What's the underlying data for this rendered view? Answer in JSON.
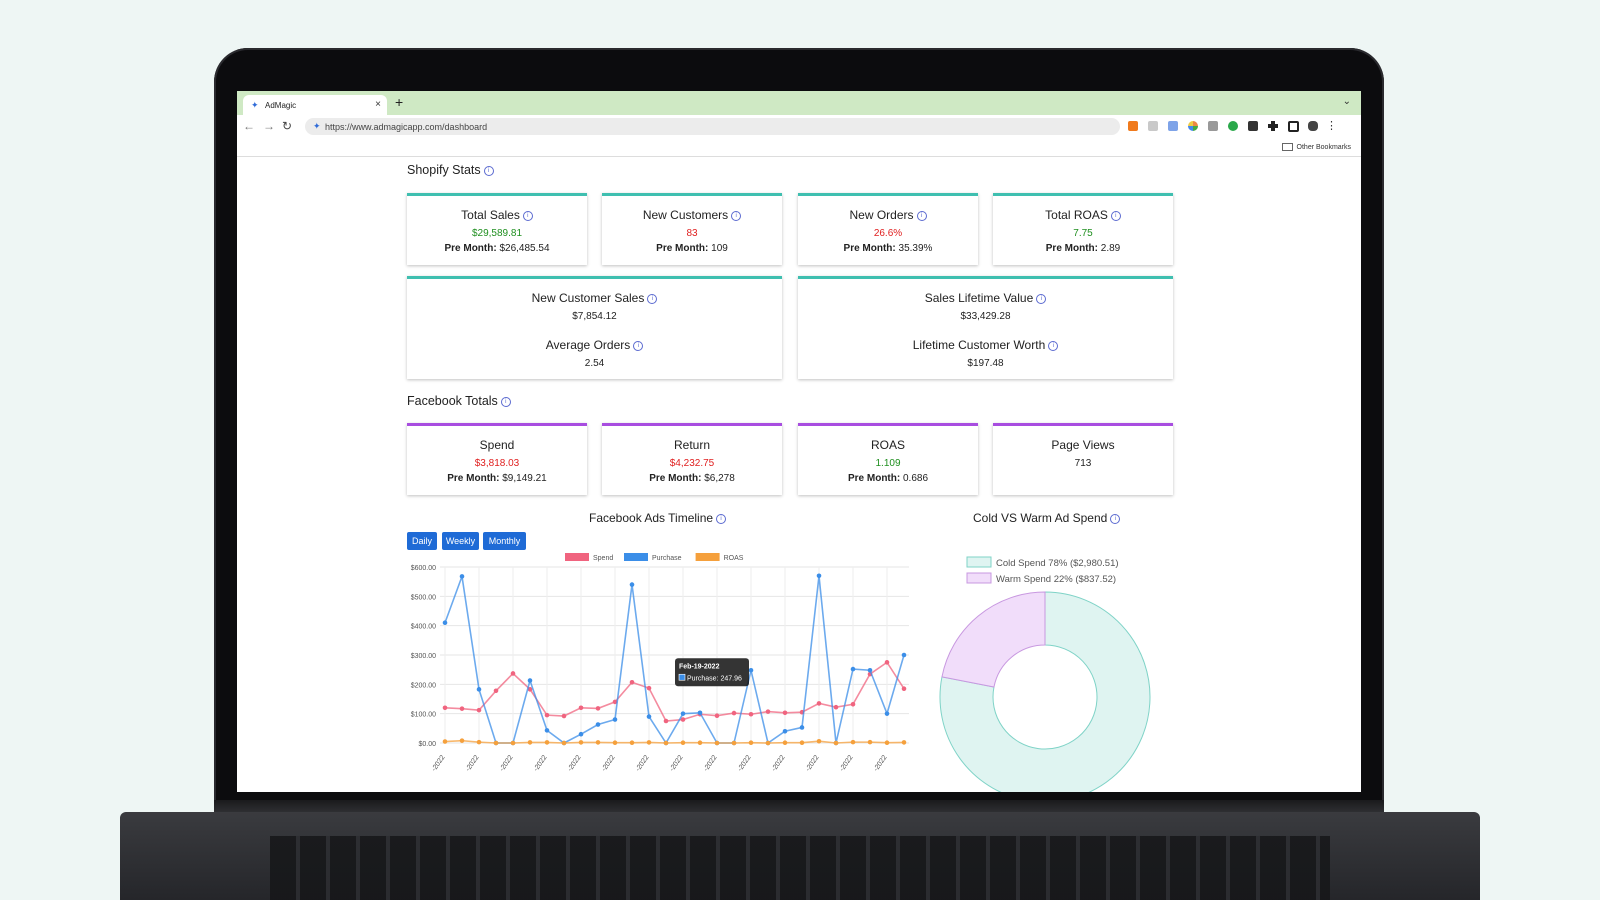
{
  "browser": {
    "tab_title": "AdMagic",
    "tab_close": "×",
    "new_tab": "+",
    "url": "https://www.admagicapp.com/dashboard",
    "bookmarks_label": "Other Bookmarks"
  },
  "shopify": {
    "title": "Shopify Stats",
    "cards": [
      {
        "title": "Total Sales",
        "value": "$29,589.81",
        "color": "green",
        "pre_label": "Pre Month:",
        "pre_value": " $26,485.54"
      },
      {
        "title": "New Customers",
        "value": "83",
        "color": "red",
        "pre_label": "Pre Month:",
        "pre_value": " 109"
      },
      {
        "title": "New Orders",
        "value": "26.6%",
        "color": "red",
        "pre_label": "Pre Month:",
        "pre_value": " 35.39%"
      },
      {
        "title": "Total ROAS",
        "value": "7.75",
        "color": "green",
        "pre_label": "Pre Month:",
        "pre_value": " 2.89"
      }
    ],
    "wide_cards": [
      {
        "title1": "New Customer Sales",
        "value1": "$7,854.12",
        "title2": "Average Orders",
        "value2": "2.54"
      },
      {
        "title1": "Sales Lifetime Value",
        "value1": "$33,429.28",
        "title2": "Lifetime Customer Worth",
        "value2": "$197.48"
      }
    ]
  },
  "facebook": {
    "title": "Facebook Totals",
    "cards": [
      {
        "title": "Spend",
        "value": "$3,818.03",
        "color": "red",
        "pre_label": "Pre Month:",
        "pre_value": " $9,149.21"
      },
      {
        "title": "Return",
        "value": "$4,232.75",
        "color": "red",
        "pre_label": "Pre Month:",
        "pre_value": " $6,278"
      },
      {
        "title": "ROAS",
        "value": "1.109",
        "color": "green",
        "pre_label": "Pre Month:",
        "pre_value": " 0.686"
      },
      {
        "title": "Page Views",
        "value": "713",
        "color": "dark",
        "pre_label": "",
        "pre_value": ""
      }
    ]
  },
  "timeline": {
    "title": "Facebook Ads Timeline",
    "buttons": [
      "Daily",
      "Weekly",
      "Monthly"
    ],
    "tooltip_title": "Feb-19-2022",
    "tooltip_body": "Purchase: 247.96"
  },
  "donut": {
    "title": "Cold VS Warm Ad Spend",
    "legend": [
      "Cold Spend 78% ($2,980.51)",
      "Warm Spend 22% ($837.52)"
    ]
  },
  "chart_data": [
    {
      "type": "line",
      "title": "Facebook Ads Timeline",
      "x_tick_labels": [
        "-2022",
        "-2022",
        "-2022",
        "-2022",
        "-2022",
        "-2022",
        "-2022",
        "-2022",
        "-2022",
        "-2022",
        "-2022",
        "-2022",
        "-2022",
        "-2022"
      ],
      "y_tick_labels": [
        "$0.00",
        "$100.00",
        "$200.00",
        "$300.00",
        "$400.00",
        "$500.00",
        "$600.00"
      ],
      "ylim": [
        0,
        600
      ],
      "legend_position": "top",
      "grid": true,
      "series": [
        {
          "name": "Spend",
          "color": "#f0647f",
          "values": [
            120,
            117,
            112,
            178,
            237,
            183,
            95,
            92,
            120,
            118,
            140,
            207,
            187,
            75,
            80,
            98,
            93,
            102,
            98,
            107,
            103,
            105,
            135,
            122,
            132,
            235,
            275,
            185
          ]
        },
        {
          "name": "Purchase",
          "color": "#3b8ee8",
          "values": [
            410,
            568,
            183,
            0,
            0,
            213,
            43,
            0,
            30,
            63,
            80,
            540,
            90,
            0,
            100,
            103,
            0,
            0,
            248,
            0,
            40,
            53,
            570,
            0,
            252,
            248,
            100,
            300
          ]
        },
        {
          "name": "ROAS",
          "color": "#f5a03c",
          "values": [
            5,
            8,
            3,
            0,
            0,
            2,
            2,
            0,
            2,
            2,
            1,
            1,
            2,
            0,
            1,
            1,
            0,
            0,
            1,
            0,
            1,
            1,
            6,
            0,
            3,
            3,
            1,
            2
          ]
        }
      ]
    },
    {
      "type": "pie",
      "title": "Cold VS Warm Ad Spend",
      "labels": [
        "Cold Spend 78% ($2,980.51)",
        "Warm Spend 22% ($837.52)"
      ],
      "values": [
        2980.51,
        837.52
      ],
      "colors": [
        "#dff4f1",
        "#f1ddfa"
      ],
      "border_colors": [
        "#7fd3c7",
        "#c898e0"
      ],
      "legend_position": "top"
    }
  ]
}
